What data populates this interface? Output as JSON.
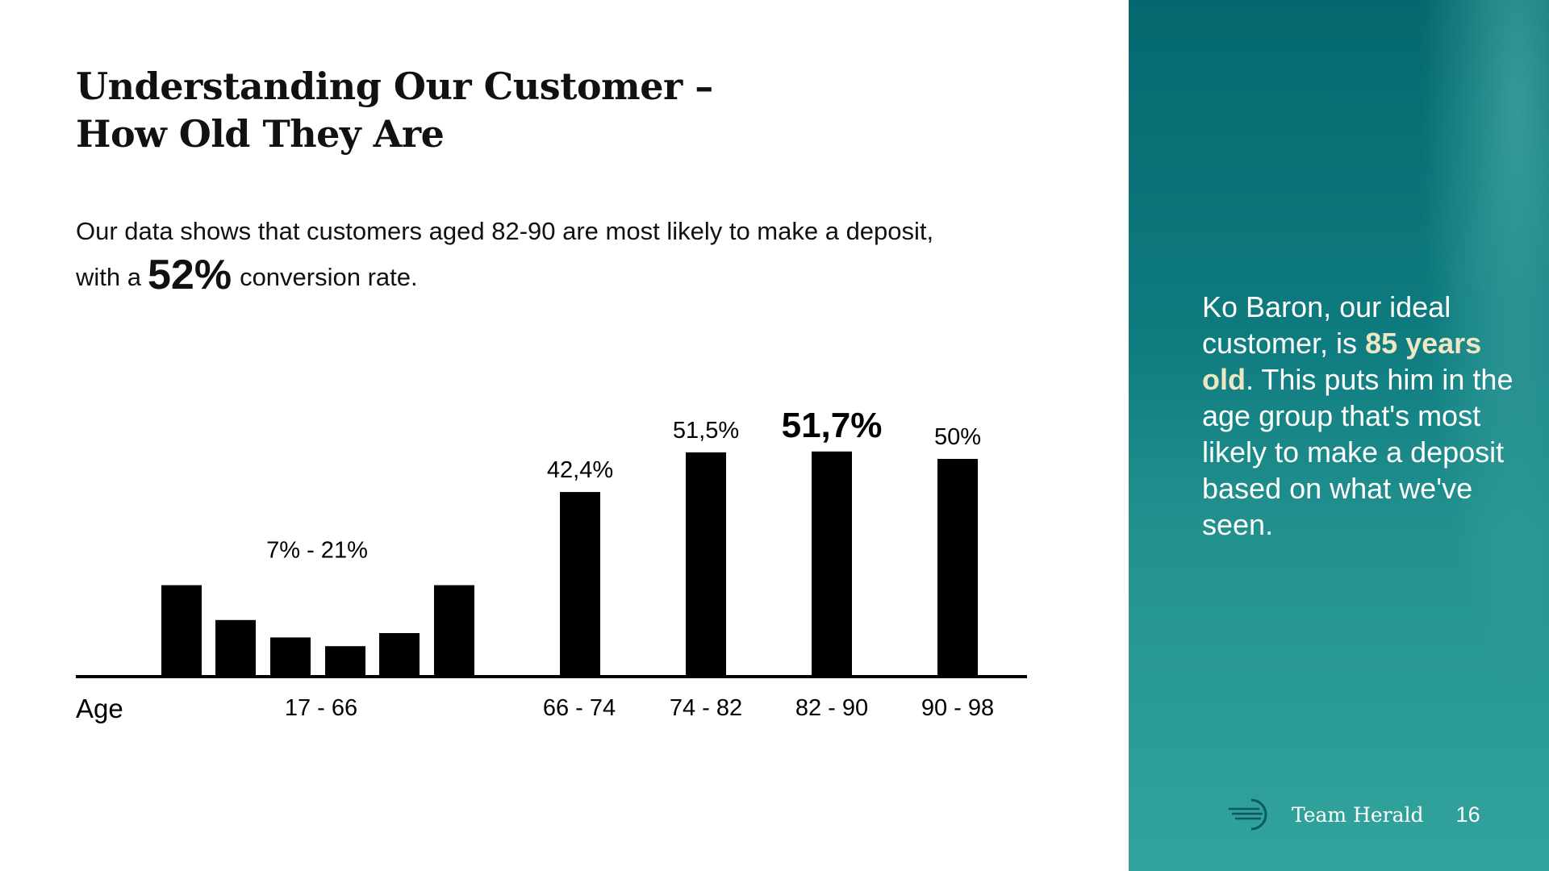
{
  "slide": {
    "title_line1": "Understanding Our Customer –",
    "title_line2": "How Old They Are",
    "intro_line1": "Our data shows that customers aged 82-90 are most likely to make a deposit,",
    "intro_pre": "with a",
    "intro_big": "52%",
    "intro_post": "conversion rate."
  },
  "side_panel": {
    "text_part1": "Ko Baron, our ideal customer, is ",
    "text_highlight": "85 years old",
    "text_part2": ". This puts him in the age group that's most likely to make a deposit based on what we've seen.",
    "highlight_color": "#efe6c4"
  },
  "footer": {
    "brand": "Team Herald",
    "page_number": "16",
    "logo_icon": "team-herald-logo-icon"
  },
  "chart_data": {
    "type": "bar",
    "xlabel": "Age",
    "ylabel": "",
    "ylim": [
      0,
      60
    ],
    "grid": false,
    "legend": "none",
    "groups": [
      {
        "category": "17 - 66",
        "label": "7% - 21%",
        "bars": [
          21,
          13,
          9,
          7,
          10,
          21
        ]
      },
      {
        "category": "66 - 74",
        "label": "42,4%",
        "bars": [
          42.4
        ]
      },
      {
        "category": "74 - 82",
        "label": "51,5%",
        "bars": [
          51.5
        ]
      },
      {
        "category": "82 - 90",
        "label": "51,7%",
        "bars": [
          51.7
        ],
        "emphasis": true
      },
      {
        "category": "90 - 98",
        "label": "50%",
        "bars": [
          50
        ]
      }
    ],
    "bar_color": "#000000"
  }
}
